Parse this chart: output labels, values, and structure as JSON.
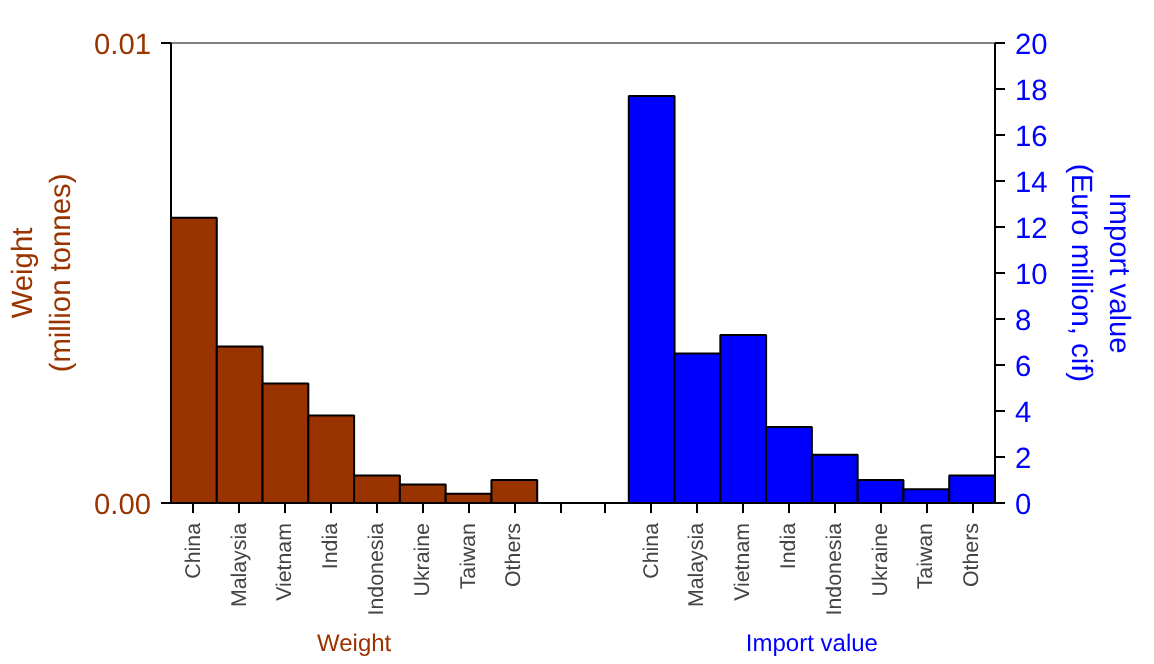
{
  "chart_data": {
    "type": "bar",
    "ylabel": "Weight\n(million tonnes)",
    "y2label": "Import value\n(Euro million, cif)",
    "categories": [
      "China",
      "Malaysia",
      "Vietnam",
      "India",
      "Indonesia",
      "Ukraine",
      "Taiwan",
      "Others",
      null,
      null,
      "China",
      "Malaysia",
      "Vietnam",
      "India",
      "Indonesia",
      "Ukraine",
      "Taiwan",
      "Others"
    ],
    "series": [
      {
        "color": "#993300",
        "values": [
          0.0062,
          0.0034,
          0.0026,
          0.0019,
          0.0006,
          0.0004,
          0.0002,
          0.0005,
          null,
          null,
          null,
          null,
          null,
          null,
          null,
          null,
          null,
          null
        ]
      },
      {
        "color": "#0000ff",
        "axis": "y2",
        "values": [
          null,
          null,
          null,
          null,
          null,
          null,
          null,
          null,
          null,
          null,
          17.7,
          6.5,
          7.3,
          3.3,
          2.1,
          1.0,
          0.6,
          1.2
        ]
      }
    ],
    "ylim": [
      0,
      0.01
    ],
    "yticks": [
      {
        "value": 0,
        "label": "0.00"
      },
      {
        "value": 0.01,
        "label": "0.01"
      }
    ],
    "y2lim": [
      0,
      20
    ],
    "y2ticks": [
      0,
      2,
      4,
      6,
      8,
      10,
      12,
      14,
      16,
      18,
      20
    ],
    "annotations": [
      "Weight",
      "Import value"
    ],
    "grid": false
  }
}
